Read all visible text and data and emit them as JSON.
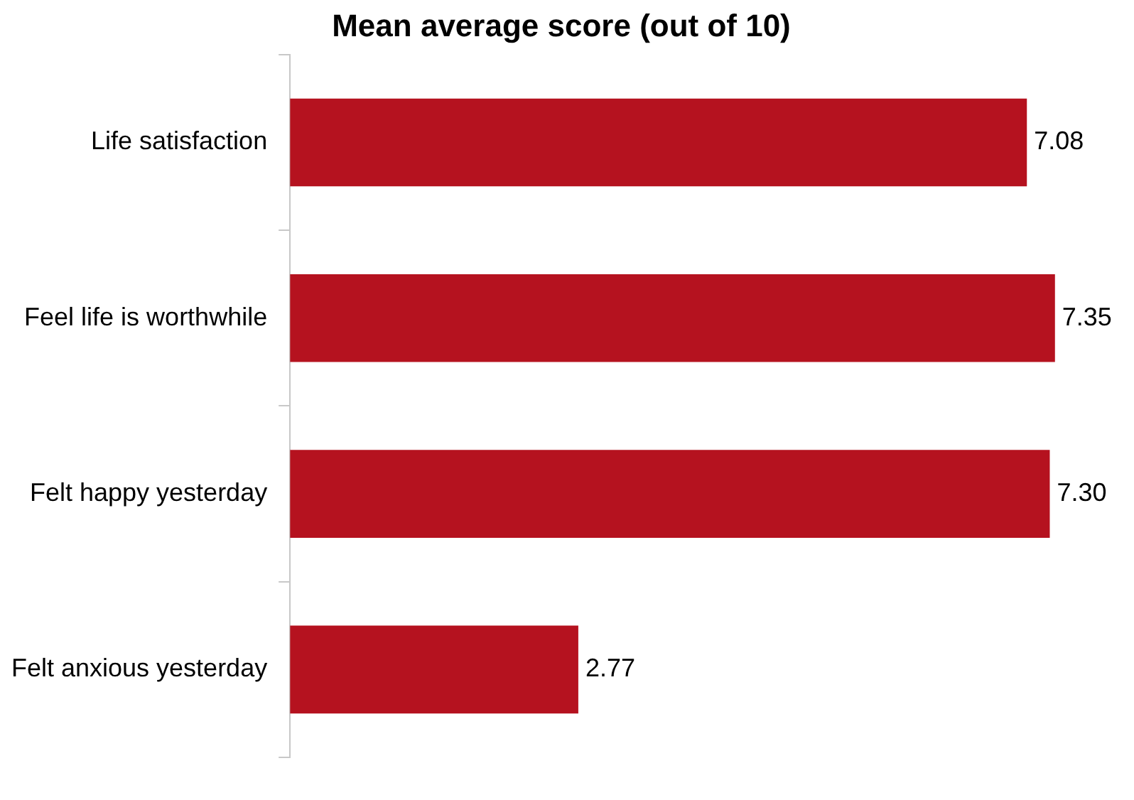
{
  "chart_data": {
    "type": "bar",
    "orientation": "horizontal",
    "title": "Mean average score (out of 10)",
    "categories": [
      "Life satisfaction",
      "Feel life is worthwhile",
      "Felt happy yesterday",
      "Felt anxious yesterday"
    ],
    "values": [
      7.08,
      7.35,
      7.3,
      2.77
    ],
    "color": "#b5121f",
    "value_labels": [
      "7.08",
      "7.35",
      "7.30",
      "2.77"
    ],
    "tick_labels": "y",
    "legend": false
  }
}
